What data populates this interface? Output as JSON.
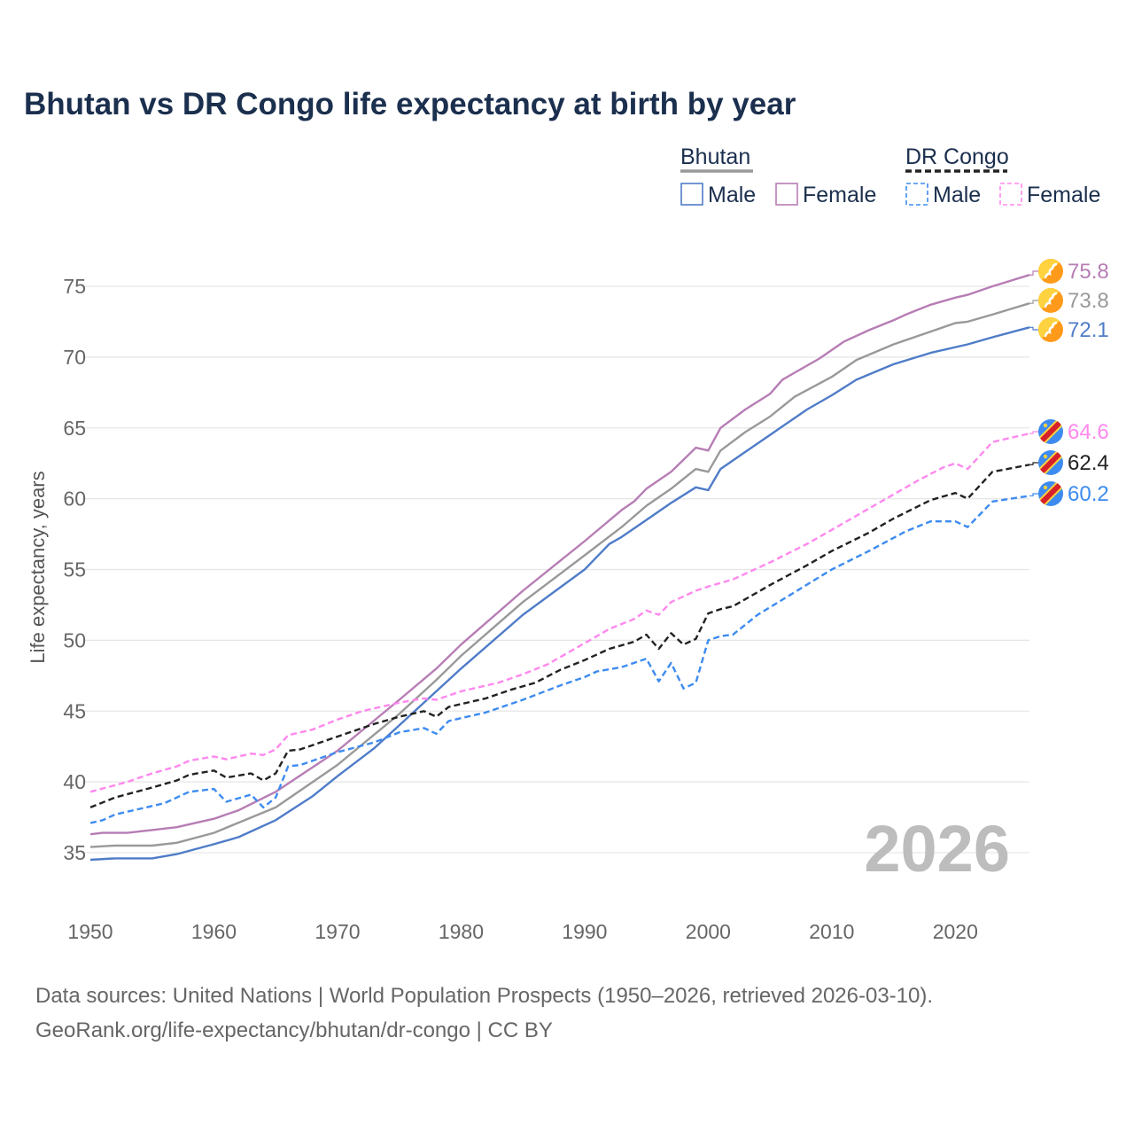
{
  "chart_data": {
    "type": "line",
    "title": "Bhutan vs DR Congo life expectancy at birth by year",
    "xlabel": "",
    "ylabel": "Life expectancy, years",
    "xlim": [
      1950,
      2026
    ],
    "ylim": [
      32,
      78
    ],
    "xticks": [
      "1950",
      "1960",
      "1970",
      "1980",
      "1990",
      "2000",
      "2010",
      "2020"
    ],
    "yticks": [
      "35",
      "40",
      "45",
      "50",
      "55",
      "60",
      "65",
      "70",
      "75"
    ],
    "grid": true,
    "legend_position": "top-right",
    "legend": {
      "groups": [
        {
          "label": "Bhutan",
          "items": [
            "Male",
            "Female"
          ]
        },
        {
          "label": "DR Congo",
          "items": [
            "Male",
            "Female"
          ]
        }
      ]
    },
    "year_watermark": "2026",
    "series": [
      {
        "name": "Bhutan Female",
        "country": "Bhutan",
        "color": "#b77db5",
        "dashed": false,
        "x": [
          1950,
          1951,
          1953,
          1955,
          1957,
          1960,
          1962,
          1965,
          1970,
          1975,
          1978,
          1980,
          1985,
          1990,
          1993,
          1994,
          1995,
          1997,
          1999,
          2000,
          2001,
          2003,
          2005,
          2006,
          2008,
          2009,
          2011,
          2013,
          2015,
          2016,
          2018,
          2020,
          2021,
          2023,
          2026
        ],
        "y": [
          36.3,
          36.4,
          36.4,
          36.6,
          36.8,
          37.4,
          38.0,
          39.3,
          42.2,
          45.8,
          48.0,
          49.7,
          53.5,
          57.0,
          59.2,
          59.8,
          60.7,
          61.9,
          63.6,
          63.4,
          65.0,
          66.3,
          67.4,
          68.4,
          69.4,
          69.9,
          71.1,
          71.9,
          72.6,
          73.0,
          73.7,
          74.2,
          74.4,
          75.0,
          75.8
        ],
        "end_label": "75.8"
      },
      {
        "name": "Bhutan Total",
        "country": "Bhutan",
        "color": "#999999",
        "dashed": false,
        "x": [
          1950,
          1952,
          1955,
          1957,
          1960,
          1965,
          1970,
          1975,
          1978,
          1980,
          1985,
          1990,
          1993,
          1995,
          1997,
          1999,
          2000,
          2001,
          2003,
          2005,
          2007,
          2010,
          2012,
          2015,
          2018,
          2020,
          2021,
          2023,
          2026
        ],
        "y": [
          35.4,
          35.5,
          35.5,
          35.7,
          36.4,
          38.2,
          41.2,
          44.8,
          47.2,
          48.9,
          52.7,
          56.0,
          58.0,
          59.5,
          60.7,
          62.1,
          61.9,
          63.4,
          64.7,
          65.8,
          67.2,
          68.6,
          69.8,
          70.9,
          71.8,
          72.4,
          72.5,
          73.0,
          73.8
        ],
        "end_label": "73.8"
      },
      {
        "name": "Bhutan Male",
        "country": "Bhutan",
        "color": "#4f7cc8",
        "dashed": false,
        "x": [
          1950,
          1952,
          1955,
          1957,
          1960,
          1962,
          1965,
          1968,
          1970,
          1973,
          1975,
          1978,
          1980,
          1985,
          1990,
          1992,
          1993,
          1995,
          1997,
          1999,
          2000,
          2001,
          2003,
          2005,
          2008,
          2010,
          2012,
          2015,
          2018,
          2021,
          2023,
          2026
        ],
        "y": [
          34.5,
          34.6,
          34.6,
          34.9,
          35.6,
          36.1,
          37.3,
          39.0,
          40.4,
          42.4,
          44.0,
          46.4,
          48.0,
          51.8,
          55.0,
          56.8,
          57.3,
          58.5,
          59.7,
          60.8,
          60.6,
          62.1,
          63.3,
          64.5,
          66.3,
          67.3,
          68.4,
          69.5,
          70.3,
          70.9,
          71.4,
          72.1
        ],
        "end_label": "72.1"
      },
      {
        "name": "DR Congo Female",
        "country": "DR Congo",
        "color": "#ff88ee",
        "dashed": true,
        "x": [
          1950,
          1953,
          1955,
          1957,
          1958,
          1960,
          1961,
          1963,
          1964,
          1965,
          1966,
          1968,
          1970,
          1972,
          1975,
          1977,
          1978,
          1980,
          1983,
          1985,
          1987,
          1990,
          1992,
          1994,
          1995,
          1996,
          1997,
          1999,
          2000,
          2002,
          2005,
          2008,
          2010,
          2013,
          2015,
          2017,
          2019,
          2020,
          2021,
          2023,
          2026
        ],
        "y": [
          39.3,
          40.0,
          40.6,
          41.1,
          41.5,
          41.8,
          41.6,
          42.0,
          41.9,
          42.3,
          43.3,
          43.7,
          44.4,
          45.0,
          45.6,
          45.9,
          45.8,
          46.4,
          47.0,
          47.6,
          48.3,
          49.8,
          50.8,
          51.5,
          52.1,
          51.8,
          52.7,
          53.5,
          53.8,
          54.3,
          55.5,
          56.8,
          57.8,
          59.3,
          60.3,
          61.3,
          62.2,
          62.5,
          62.1,
          64.0,
          64.6
        ],
        "end_label": "64.6"
      },
      {
        "name": "DR Congo Total",
        "country": "DR Congo",
        "color": "#222222",
        "dashed": true,
        "x": [
          1950,
          1952,
          1955,
          1957,
          1958,
          1960,
          1961,
          1963,
          1964,
          1965,
          1966,
          1967,
          1970,
          1973,
          1975,
          1977,
          1978,
          1979,
          1982,
          1984,
          1986,
          1988,
          1990,
          1992,
          1994,
          1995,
          1996,
          1997,
          1998,
          1999,
          2000,
          2001,
          2002,
          2005,
          2008,
          2010,
          2013,
          2015,
          2018,
          2020,
          2021,
          2023,
          2026
        ],
        "y": [
          38.2,
          38.9,
          39.6,
          40.1,
          40.5,
          40.8,
          40.3,
          40.6,
          40.1,
          40.6,
          42.2,
          42.3,
          43.2,
          44.1,
          44.6,
          45.0,
          44.6,
          45.3,
          45.9,
          46.5,
          47.0,
          47.9,
          48.6,
          49.4,
          49.9,
          50.4,
          49.4,
          50.5,
          49.7,
          50.1,
          51.9,
          52.2,
          52.4,
          53.9,
          55.3,
          56.3,
          57.6,
          58.6,
          59.9,
          60.4,
          60.0,
          61.9,
          62.4
        ],
        "end_label": "62.4"
      },
      {
        "name": "DR Congo Male",
        "country": "DR Congo",
        "color": "#3d8bf0",
        "dashed": true,
        "x": [
          1950,
          1951,
          1952,
          1954,
          1956,
          1958,
          1960,
          1961,
          1963,
          1964,
          1965,
          1966,
          1967,
          1970,
          1973,
          1975,
          1977,
          1978,
          1979,
          1982,
          1985,
          1988,
          1990,
          1991,
          1993,
          1995,
          1996,
          1997,
          1998,
          1999,
          2000,
          2001,
          2002,
          2004,
          2007,
          2010,
          2013,
          2016,
          2018,
          2020,
          2021,
          2023,
          2026
        ],
        "y": [
          37.1,
          37.3,
          37.7,
          38.1,
          38.5,
          39.3,
          39.5,
          38.6,
          39.1,
          38.2,
          38.9,
          41.1,
          41.2,
          42.1,
          42.8,
          43.5,
          43.8,
          43.4,
          44.3,
          44.9,
          45.8,
          46.8,
          47.4,
          47.8,
          48.1,
          48.7,
          47.1,
          48.4,
          46.6,
          47.0,
          50.0,
          50.3,
          50.4,
          51.8,
          53.4,
          55.0,
          56.3,
          57.7,
          58.4,
          58.4,
          58.0,
          59.8,
          60.2
        ],
        "end_label": "60.2"
      }
    ],
    "footnote": [
      "Data sources: United Nations | World Population Prospects (1950–2026, retrieved 2026-03-10).",
      "GeoRank.org/life-expectancy/bhutan/dr-congo | CC BY"
    ]
  }
}
